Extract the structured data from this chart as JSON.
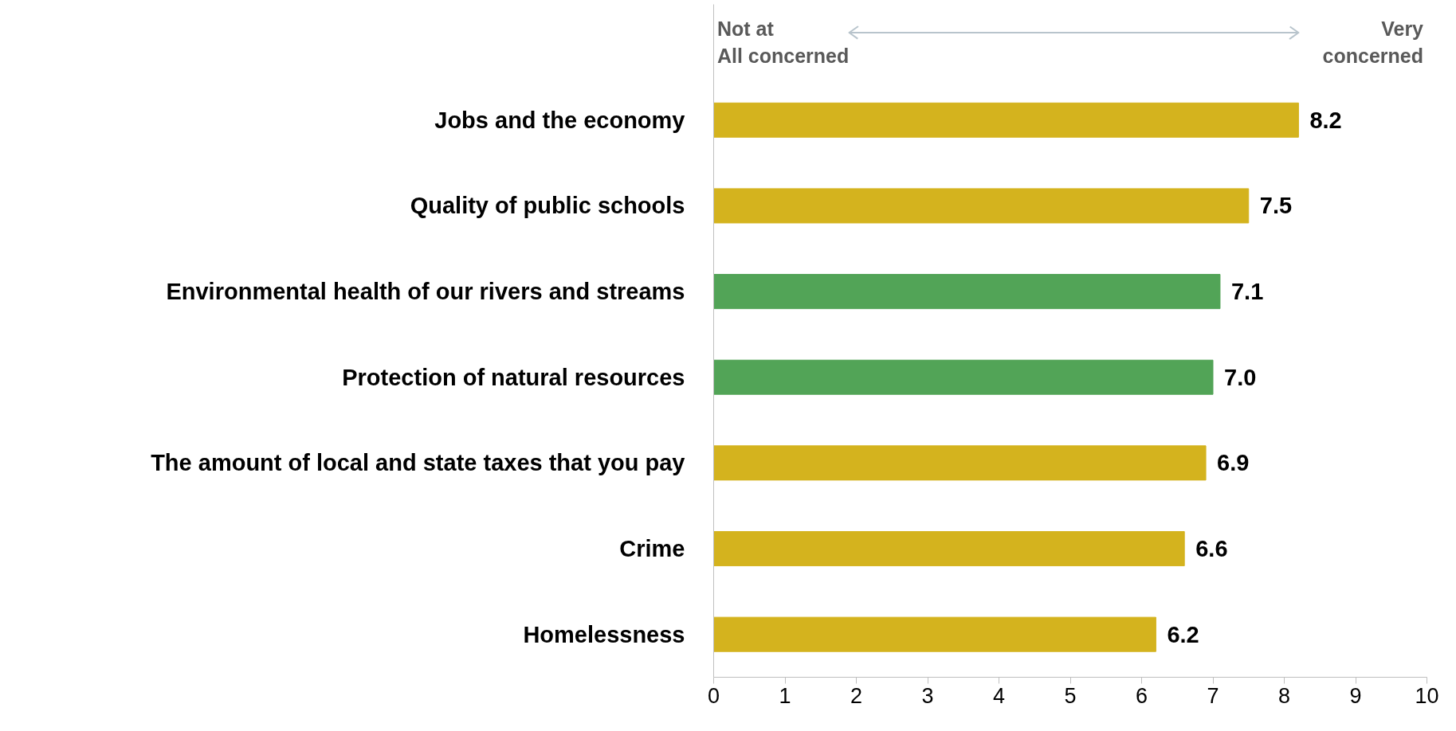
{
  "chart_data": {
    "type": "bar",
    "orientation": "horizontal",
    "categories": [
      "Jobs and the economy",
      "Quality of public schools",
      "Environmental health of our rivers and streams",
      "Protection of natural resources",
      "The amount of local and state taxes that you pay",
      "Crime",
      "Homelessness"
    ],
    "values": [
      8.2,
      7.5,
      7.1,
      7.0,
      6.9,
      6.6,
      6.2
    ],
    "value_labels": [
      "8.2",
      "7.5",
      "7.1",
      "7.0",
      "6.9",
      "6.6",
      "6.2"
    ],
    "colors": [
      "#d4b31e",
      "#d4b31e",
      "#52a457",
      "#52a457",
      "#d4b31e",
      "#d4b31e",
      "#d4b31e"
    ],
    "xlim": [
      0,
      10
    ],
    "xticks": [
      0,
      1,
      2,
      3,
      4,
      5,
      6,
      7,
      8,
      9,
      10
    ],
    "grid": false,
    "annotations": [
      "Not at\nAll concerned",
      "Very\nconcerned"
    ]
  }
}
